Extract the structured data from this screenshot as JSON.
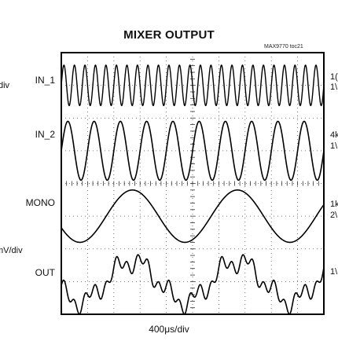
{
  "chart_data": {
    "type": "line",
    "title": "MIXER OUTPUT",
    "figure_code": "MAX9770 toc21",
    "xlabel": "400μs/div",
    "grid": true,
    "x_divisions": 10,
    "y_divisions": 8,
    "channels": [
      {
        "label": "IN_1",
        "scale_right_line1": "1(",
        "scale_right_line2": "1\\",
        "waveform": "sine",
        "cycles": 25,
        "amplitude_div": 0.62
      },
      {
        "label": "IN_2",
        "scale_right_line1": "4k",
        "scale_right_line2": "1\\",
        "waveform": "sine",
        "cycles": 10,
        "amplitude_div": 0.9
      },
      {
        "label": "MONO",
        "scale_right_line1": "1k",
        "scale_right_line2": "2\\",
        "waveform": "sine",
        "cycles": 2.5,
        "amplitude_div": 0.8
      },
      {
        "label": "OUT",
        "scale_right_line1": "1\\",
        "scale_right_line2": "",
        "waveform": "sum",
        "cycles": 2.5,
        "amplitude_div": 0.8
      }
    ],
    "left_cut_labels": [
      "div",
      "mV/div"
    ]
  }
}
